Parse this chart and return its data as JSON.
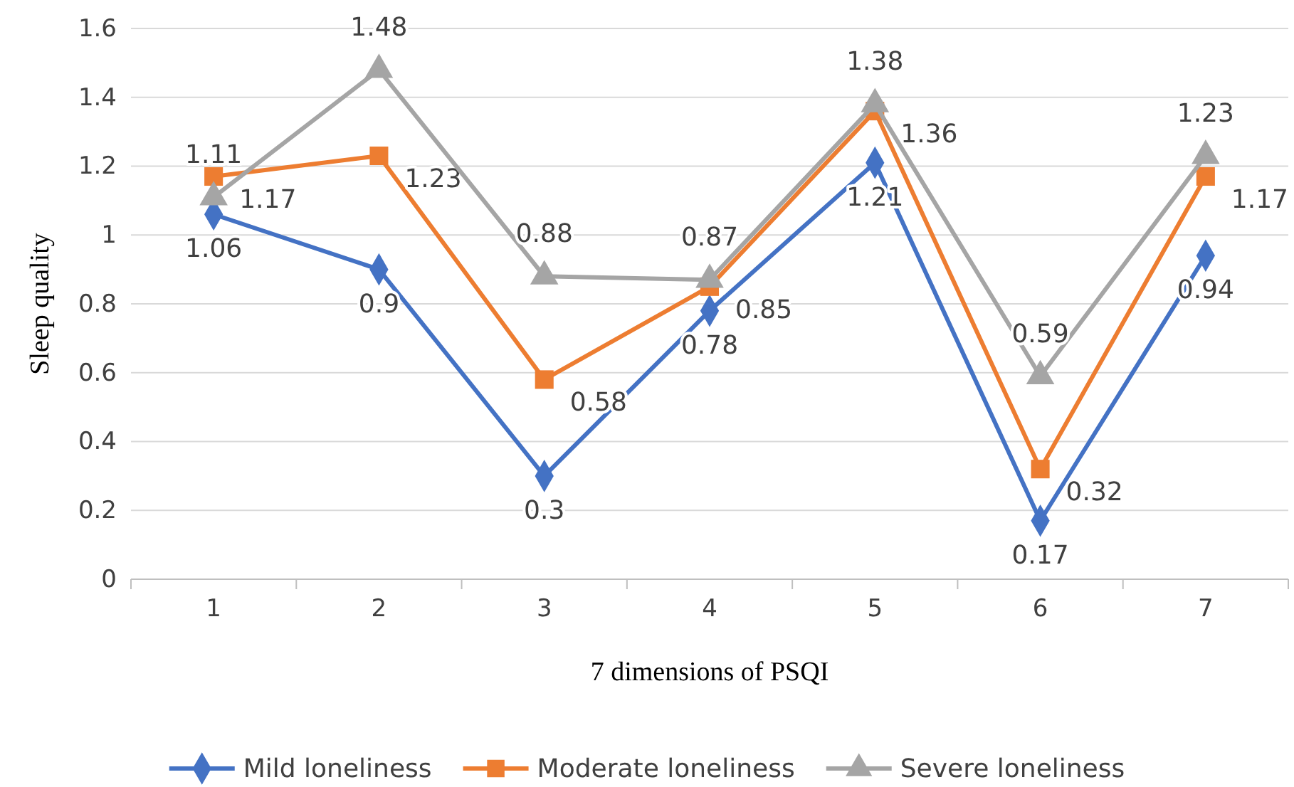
{
  "chart_data": {
    "type": "line",
    "xlabel": "7 dimensions of PSQI",
    "ylabel": "Sleep quality",
    "categories": [
      "1",
      "2",
      "3",
      "4",
      "5",
      "6",
      "7"
    ],
    "series": [
      {
        "name": "Mild loneliness",
        "color": "#4472c4",
        "marker": "diamond",
        "values": [
          1.06,
          0.9,
          0.3,
          0.78,
          1.21,
          0.17,
          0.94
        ]
      },
      {
        "name": "Moderate loneliness",
        "color": "#ed7d31",
        "marker": "square",
        "values": [
          1.17,
          1.23,
          0.58,
          0.85,
          1.36,
          0.32,
          1.17
        ]
      },
      {
        "name": "Severe loneliness",
        "color": "#a5a5a5",
        "marker": "triangle",
        "values": [
          1.11,
          1.48,
          0.88,
          0.87,
          1.38,
          0.59,
          1.23
        ]
      }
    ],
    "ylim": [
      0,
      1.6
    ],
    "yticks": [
      0,
      0.2,
      0.4,
      0.6,
      0.8,
      1,
      1.2,
      1.4,
      1.6
    ],
    "grid": "y",
    "legend": "bottom",
    "data_labels": true,
    "line_style": "solid"
  }
}
